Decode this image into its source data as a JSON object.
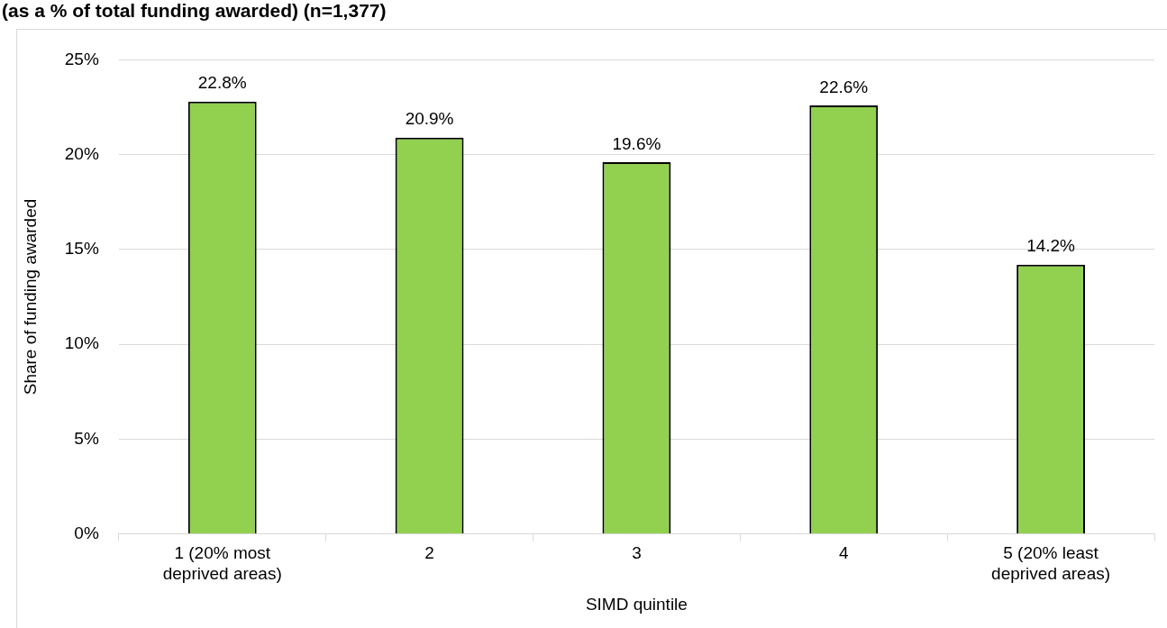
{
  "chart_data": {
    "type": "bar",
    "title": "(as a % of total funding awarded) (n=1,377)",
    "xlabel": "SIMD quintile",
    "ylabel": "Share of funding awarded",
    "categories": [
      "1 (20% most deprived areas)",
      "2",
      "3",
      "4",
      "5 (20% least deprived areas)"
    ],
    "values": [
      22.8,
      20.9,
      19.6,
      22.6,
      14.2
    ],
    "value_labels": [
      "22.8%",
      "20.9%",
      "19.6%",
      "22.6%",
      "14.2%"
    ],
    "color": "#92d050",
    "ylim": [
      0,
      25
    ],
    "yticks": [
      {
        "value": 0,
        "label": "0%"
      },
      {
        "value": 5,
        "label": "5%"
      },
      {
        "value": 10,
        "label": "10%"
      },
      {
        "value": 15,
        "label": "15%"
      },
      {
        "value": 20,
        "label": "20%"
      },
      {
        "value": 25,
        "label": "25%"
      }
    ],
    "grid": "y"
  }
}
